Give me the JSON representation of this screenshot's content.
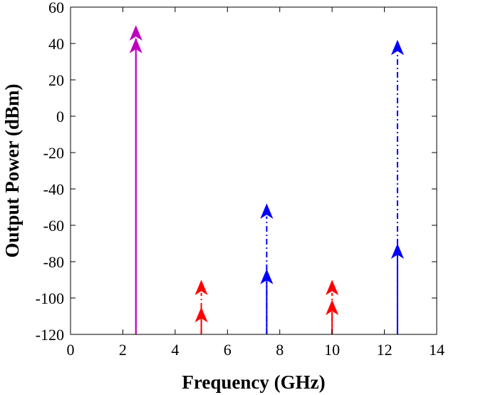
{
  "chart_data": {
    "type": "stem",
    "title": "",
    "xlabel": "Frequency (GHz)",
    "ylabel": "Output Power (dBm)",
    "xlim": [
      0,
      14
    ],
    "ylim": [
      -120,
      60
    ],
    "xticks": [
      0,
      2,
      4,
      6,
      8,
      10,
      12,
      14
    ],
    "xtick_labels": [
      "0",
      "2",
      "4",
      "6",
      "8",
      "10",
      "12",
      "14"
    ],
    "yticks": [
      -120,
      -100,
      -80,
      -60,
      -40,
      -20,
      0,
      20,
      40,
      60
    ],
    "ytick_labels": [
      "-120",
      "-100",
      "-80",
      "-60",
      "-40",
      "-20",
      "0",
      "20",
      "40",
      "60"
    ],
    "grid": false,
    "baseline": -120,
    "series": [
      {
        "color": "#c000c0",
        "style": "solid",
        "points": [
          {
            "x": 2.5,
            "y": 46
          }
        ]
      },
      {
        "color": "#c000c0",
        "style": "solid",
        "points": [
          {
            "x": 2.5,
            "y": 39
          }
        ]
      },
      {
        "color": "#ff0000",
        "style": "dashdot",
        "points": [
          {
            "x": 5,
            "y": -94
          },
          {
            "x": 10,
            "y": -94
          }
        ]
      },
      {
        "color": "#ff0000",
        "style": "solid",
        "points": [
          {
            "x": 5,
            "y": -109
          },
          {
            "x": 10,
            "y": -105
          }
        ]
      },
      {
        "color": "#0000ff",
        "style": "dashdot",
        "points": [
          {
            "x": 7.5,
            "y": -52
          },
          {
            "x": 12.5,
            "y": 38
          }
        ]
      },
      {
        "color": "#0000ff",
        "style": "solid",
        "points": [
          {
            "x": 7.5,
            "y": -88
          },
          {
            "x": 12.5,
            "y": -74
          }
        ]
      }
    ]
  }
}
